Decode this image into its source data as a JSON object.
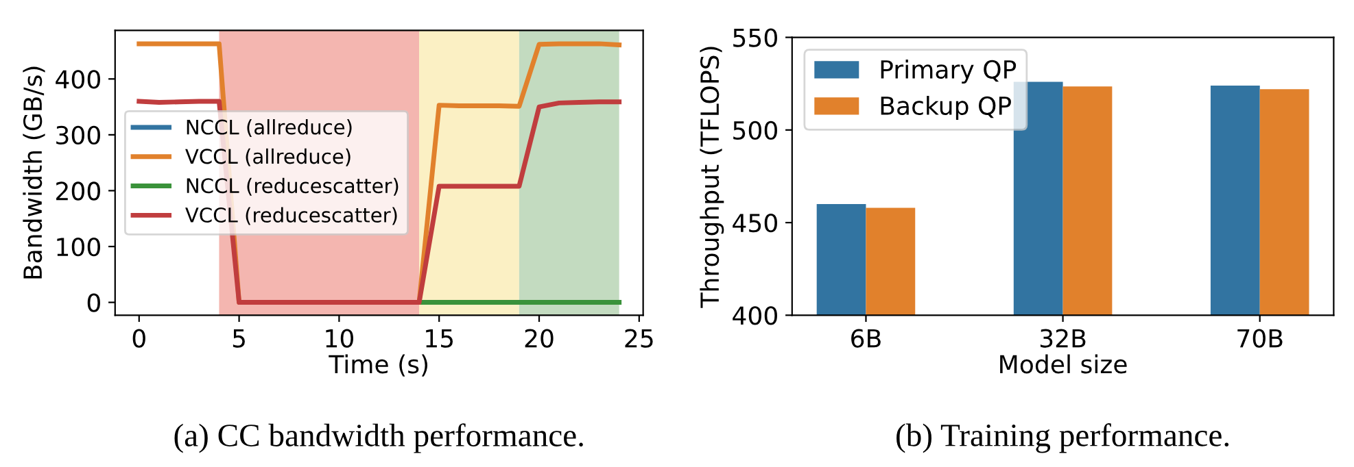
{
  "chart_data": [
    {
      "type": "line",
      "xlabel": "Time (s)",
      "ylabel": "Bandwidth (GB/s)",
      "x": [
        0,
        1,
        2,
        3,
        4,
        5,
        6,
        7,
        8,
        9,
        10,
        11,
        12,
        13,
        14,
        15,
        16,
        17,
        18,
        19,
        20,
        21,
        22,
        23,
        24
      ],
      "series": [
        {
          "name": "NCCL (allreduce)",
          "color": "#3274a1",
          "values": [
            null,
            null,
            null,
            null,
            null,
            null,
            null,
            null,
            null,
            null,
            null,
            null,
            null,
            null,
            null,
            null,
            null,
            null,
            null,
            null,
            null,
            null,
            null,
            null,
            null
          ]
        },
        {
          "name": "VCCL (allreduce)",
          "color": "#e1812c",
          "values": [
            463,
            463,
            463,
            463,
            463,
            0,
            0,
            0,
            0,
            0,
            0,
            0,
            0,
            0,
            0,
            353,
            352,
            352,
            352,
            351,
            462,
            463,
            463,
            463,
            461
          ]
        },
        {
          "name": "NCCL (reducescatter)",
          "color": "#3a923a",
          "values": [
            null,
            null,
            null,
            null,
            null,
            null,
            null,
            null,
            null,
            null,
            null,
            null,
            null,
            null,
            0,
            0,
            0,
            0,
            0,
            0,
            0,
            0,
            0,
            0,
            0
          ]
        },
        {
          "name": "VCCL (reducescatter)",
          "color": "#c03d3e",
          "values": [
            360,
            358,
            359,
            360,
            360,
            0,
            0,
            0,
            0,
            0,
            0,
            0,
            0,
            0,
            0,
            208,
            208,
            208,
            208,
            208,
            350,
            357,
            358,
            359,
            359
          ]
        }
      ],
      "bands": [
        {
          "axis": "x",
          "from": 4,
          "to": 14,
          "color": "#f4b6b0"
        },
        {
          "axis": "x",
          "from": 14,
          "to": 19,
          "color": "#fbf0c4"
        },
        {
          "axis": "x",
          "from": 19,
          "to": 24,
          "color": "#c3dbc0"
        }
      ],
      "xlim": [
        -1.2,
        25.2
      ],
      "ylim": [
        -23,
        487
      ],
      "xticks": [
        0,
        5,
        10,
        15,
        20,
        25
      ],
      "yticks": [
        0,
        100,
        200,
        300,
        400
      ],
      "legend": "left",
      "grid": false,
      "annotations": [
        "(a) CC bandwidth performance."
      ]
    },
    {
      "type": "bar",
      "xlabel": "Model size",
      "ylabel": "Throughput (TFLOPS)",
      "categories": [
        "6B",
        "32B",
        "70B"
      ],
      "series": [
        {
          "name": "Primary QP",
          "color": "#3274a1",
          "values": [
            460,
            526,
            524
          ]
        },
        {
          "name": "Backup QP",
          "color": "#e1812c",
          "values": [
            458,
            523.5,
            522
          ]
        }
      ],
      "ylim": [
        400,
        550
      ],
      "yticks": [
        400,
        450,
        500,
        550
      ],
      "legend": "top left",
      "grid": false,
      "annotations": [
        "(b) Training performance."
      ]
    }
  ]
}
